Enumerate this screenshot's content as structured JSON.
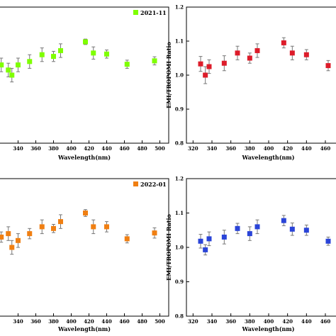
{
  "chart_data": [
    {
      "type": "scatter",
      "xlabel": "Wavelength(nm)",
      "ylabel": "",
      "xlim": [
        318,
        510
      ],
      "ylim": [
        0.8,
        1.2
      ],
      "x_ticks": [
        "340",
        "360",
        "380",
        "400",
        "420",
        "440",
        "460",
        "480",
        "500"
      ],
      "y_ticks": [],
      "legend": "top-right",
      "series": [
        {
          "name": "2021-11",
          "color": "#7fff00",
          "marker": "square",
          "points": [
            {
              "x": 321,
              "y": 1.03,
              "err": 0.02
            },
            {
              "x": 329,
              "y": 1.015,
              "err": 0.02
            },
            {
              "x": 333,
              "y": 1.0,
              "err": 0.02
            },
            {
              "x": 340,
              "y": 1.03,
              "err": 0.02
            },
            {
              "x": 353,
              "y": 1.04,
              "err": 0.02
            },
            {
              "x": 367,
              "y": 1.06,
              "err": 0.02
            },
            {
              "x": 380,
              "y": 1.055,
              "err": 0.015
            },
            {
              "x": 388,
              "y": 1.072,
              "err": 0.02
            },
            {
              "x": 416,
              "y": 1.098,
              "err": 0.008
            },
            {
              "x": 425,
              "y": 1.065,
              "err": 0.018
            },
            {
              "x": 440,
              "y": 1.062,
              "err": 0.012
            },
            {
              "x": 463,
              "y": 1.032,
              "err": 0.012
            },
            {
              "x": 494,
              "y": 1.042,
              "err": 0.012
            }
          ]
        }
      ]
    },
    {
      "type": "scatter",
      "xlabel": "Wavelength(nm)",
      "ylabel": "EMI/TROPOMI Ratio",
      "xlim": [
        313,
        475
      ],
      "ylim": [
        0.8,
        1.2
      ],
      "x_ticks": [
        "320",
        "340",
        "360",
        "380",
        "400",
        "420",
        "440",
        "460"
      ],
      "y_ticks": [
        "0.8",
        "0.9",
        "1.0",
        "1.1",
        "1.2"
      ],
      "legend": "",
      "series": [
        {
          "name": "",
          "color": "#dd1c2a",
          "marker": "square",
          "points": [
            {
              "x": 328,
              "y": 1.033,
              "err": 0.022
            },
            {
              "x": 333,
              "y": 1.0,
              "err": 0.025
            },
            {
              "x": 337,
              "y": 1.025,
              "err": 0.02
            },
            {
              "x": 353,
              "y": 1.035,
              "err": 0.022
            },
            {
              "x": 367,
              "y": 1.065,
              "err": 0.02
            },
            {
              "x": 380,
              "y": 1.05,
              "err": 0.015
            },
            {
              "x": 388,
              "y": 1.072,
              "err": 0.02
            },
            {
              "x": 416,
              "y": 1.095,
              "err": 0.015
            },
            {
              "x": 425,
              "y": 1.065,
              "err": 0.02
            },
            {
              "x": 440,
              "y": 1.06,
              "err": 0.015
            },
            {
              "x": 463,
              "y": 1.028,
              "err": 0.015
            }
          ]
        }
      ]
    },
    {
      "type": "scatter",
      "xlabel": "Wavelength(nm)",
      "ylabel": "",
      "xlim": [
        318,
        510
      ],
      "ylim": [
        0.8,
        1.2
      ],
      "x_ticks": [
        "340",
        "360",
        "380",
        "400",
        "420",
        "440",
        "460",
        "480",
        "500"
      ],
      "y_ticks": [],
      "legend": "top-right",
      "series": [
        {
          "name": "2022-01",
          "color": "#f07f12",
          "marker": "square",
          "points": [
            {
              "x": 321,
              "y": 1.03,
              "err": 0.015
            },
            {
              "x": 329,
              "y": 1.04,
              "err": 0.02
            },
            {
              "x": 333,
              "y": 1.0,
              "err": 0.02
            },
            {
              "x": 340,
              "y": 1.02,
              "err": 0.02
            },
            {
              "x": 353,
              "y": 1.04,
              "err": 0.015
            },
            {
              "x": 367,
              "y": 1.06,
              "err": 0.02
            },
            {
              "x": 380,
              "y": 1.055,
              "err": 0.012
            },
            {
              "x": 388,
              "y": 1.075,
              "err": 0.02
            },
            {
              "x": 416,
              "y": 1.1,
              "err": 0.01
            },
            {
              "x": 425,
              "y": 1.06,
              "err": 0.02
            },
            {
              "x": 440,
              "y": 1.06,
              "err": 0.015
            },
            {
              "x": 463,
              "y": 1.025,
              "err": 0.012
            },
            {
              "x": 494,
              "y": 1.042,
              "err": 0.015
            }
          ]
        }
      ]
    },
    {
      "type": "scatter",
      "xlabel": "Wavelength(nm)",
      "ylabel": "EMI/TROPOMI Ratio",
      "xlim": [
        313,
        475
      ],
      "ylim": [
        0.8,
        1.2
      ],
      "x_ticks": [
        "320",
        "340",
        "360",
        "380",
        "400",
        "420",
        "440",
        "460"
      ],
      "y_ticks": [
        "0.8",
        "0.9",
        "1.0",
        "1.1",
        "1.2"
      ],
      "legend": "",
      "series": [
        {
          "name": "",
          "color": "#2a44d8",
          "marker": "square",
          "points": [
            {
              "x": 328,
              "y": 1.018,
              "err": 0.02
            },
            {
              "x": 333,
              "y": 0.993,
              "err": 0.015
            },
            {
              "x": 337,
              "y": 1.025,
              "err": 0.02
            },
            {
              "x": 353,
              "y": 1.03,
              "err": 0.02
            },
            {
              "x": 367,
              "y": 1.055,
              "err": 0.015
            },
            {
              "x": 380,
              "y": 1.04,
              "err": 0.02
            },
            {
              "x": 388,
              "y": 1.06,
              "err": 0.02
            },
            {
              "x": 416,
              "y": 1.078,
              "err": 0.015
            },
            {
              "x": 425,
              "y": 1.053,
              "err": 0.018
            },
            {
              "x": 440,
              "y": 1.05,
              "err": 0.015
            },
            {
              "x": 463,
              "y": 1.018,
              "err": 0.012
            }
          ]
        }
      ]
    }
  ]
}
